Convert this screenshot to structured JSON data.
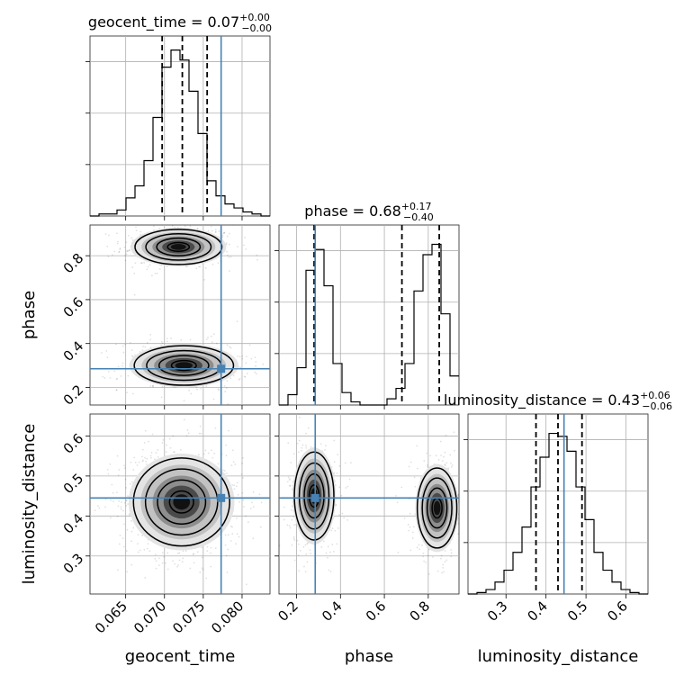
{
  "chart_data": {
    "type": "corner",
    "parameters": [
      "geocent_time",
      "phase",
      "luminosity_distance"
    ],
    "ranges": {
      "geocent_time": [
        0.0604,
        0.0836
      ],
      "phase": [
        0.12,
        0.94
      ],
      "luminosity_distance": [
        0.205,
        0.655
      ]
    },
    "truths": {
      "geocent_time": 0.0773,
      "phase": 0.285,
      "luminosity_distance": 0.445
    },
    "titles": {
      "geocent_time": {
        "prefix": "geocent_time = 0.07",
        "upper": "+0.00",
        "lower": "−0.00"
      },
      "phase": {
        "prefix": "phase = 0.68",
        "upper": "+0.17",
        "lower": "−0.40"
      },
      "luminosity_distance": {
        "prefix": "luminosity_distance = 0.43",
        "upper": "+0.06",
        "lower": "−0.06"
      }
    },
    "quantiles": {
      "geocent_time": [
        0.0697,
        0.0723,
        0.0755
      ],
      "phase": [
        0.28,
        0.68,
        0.85
      ],
      "luminosity_distance": [
        0.375,
        0.43,
        0.49
      ]
    },
    "ticks": {
      "geocent_time": [
        0.065,
        0.07,
        0.075,
        0.08
      ],
      "phase": [
        0.2,
        0.4,
        0.6,
        0.8
      ],
      "luminosity_distance": [
        0.3,
        0.4,
        0.5,
        0.6
      ]
    },
    "tick_labels": {
      "geocent_time": [
        "0.065",
        "0.070",
        "0.075",
        "0.080"
      ],
      "phase": [
        "0.2",
        "0.4",
        "0.6",
        "0.8"
      ],
      "luminosity_distance": [
        "0.3",
        "0.4",
        "0.5",
        "0.6"
      ]
    },
    "histograms": {
      "geocent_time": {
        "edges": [
          0.0604,
          0.06156,
          0.06272,
          0.06388,
          0.06504,
          0.0662,
          0.06736,
          0.06852,
          0.06968,
          0.07084,
          0.072,
          0.07316,
          0.07432,
          0.07548,
          0.07664,
          0.0778,
          0.07896,
          0.08012,
          0.08128,
          0.08244,
          0.0836
        ],
        "counts": [
          0,
          2,
          2,
          6,
          18,
          30,
          55,
          98,
          148,
          165,
          155,
          124,
          82,
          35,
          20,
          12,
          8,
          4,
          2,
          0
        ],
        "ymax": 170
      },
      "phase": {
        "edges": [
          0.12,
          0.161,
          0.202,
          0.243,
          0.284,
          0.325,
          0.366,
          0.407,
          0.448,
          0.489,
          0.53,
          0.571,
          0.612,
          0.653,
          0.694,
          0.735,
          0.776,
          0.817,
          0.858,
          0.899,
          0.94
        ],
        "counts": [
          0,
          10,
          36,
          130,
          150,
          115,
          40,
          12,
          3,
          0,
          0,
          0,
          6,
          16,
          40,
          110,
          145,
          155,
          88,
          28
        ],
        "ymax": 165
      },
      "luminosity_distance": {
        "edges": [
          0.205,
          0.2275,
          0.25,
          0.2725,
          0.295,
          0.3175,
          0.34,
          0.3625,
          0.385,
          0.4075,
          0.43,
          0.4525,
          0.475,
          0.4975,
          0.52,
          0.5425,
          0.565,
          0.5875,
          0.61,
          0.6325,
          0.655
        ],
        "counts": [
          0,
          1,
          3,
          8,
          16,
          28,
          45,
          72,
          92,
          108,
          106,
          96,
          72,
          50,
          28,
          16,
          8,
          3,
          1,
          0
        ],
        "ymax": 115
      }
    },
    "blobs": {
      "phase|geocent_time": [
        {
          "cx": 0.0718,
          "cy": 0.84,
          "sx": 0.0028,
          "sy": 0.04,
          "weight": 0.5
        },
        {
          "cx": 0.0725,
          "cy": 0.3,
          "sx": 0.0032,
          "sy": 0.045,
          "weight": 0.5
        }
      ],
      "luminosity_distance|geocent_time": [
        {
          "cx": 0.0722,
          "cy": 0.435,
          "sx": 0.0031,
          "sy": 0.055,
          "weight": 1
        }
      ],
      "luminosity_distance|phase": [
        {
          "cx": 0.28,
          "cy": 0.45,
          "sx": 0.045,
          "sy": 0.055,
          "weight": 0.5
        },
        {
          "cx": 0.84,
          "cy": 0.42,
          "sx": 0.045,
          "sy": 0.05,
          "weight": 0.5
        }
      ]
    },
    "contour_levels": [
      0.5,
      1.0,
      1.5,
      2.0
    ],
    "grid": true
  }
}
